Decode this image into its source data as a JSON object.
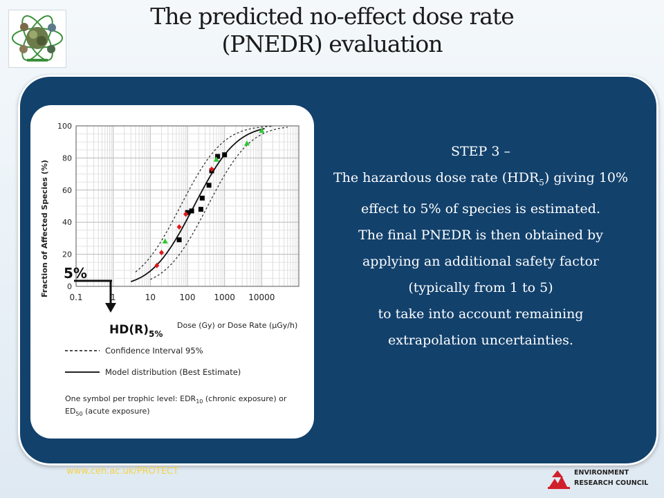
{
  "slide": {
    "title_line1": "The predicted no-effect dose rate",
    "title_line2": "(PNEDR) evaluation",
    "logo_icon": "protect-atom-logo-icon",
    "step": {
      "heading": "STEP 3 –",
      "line1_pre": "The hazardous dose rate (HDR",
      "line1_sub": "5",
      "line1_post": ") giving 10%",
      "line2": "effect to 5% of species is estimated.",
      "line3": "The final PNEDR is then obtained by",
      "line4": "applying  an additional safety factor",
      "line5": "(typically from 1 to 5)",
      "line6": "to take into account remaining",
      "line7": "extrapolation uncertainties."
    },
    "footer_url": "www.ceh.ac.uk/PROTECT",
    "org_line1": "ENVIRONMENT",
    "org_line2": "RESEARCH COUNCIL",
    "colors": {
      "panel": "#12416c",
      "accent_url": "#f3d34a",
      "nerc_red": "#d0202b"
    }
  },
  "figure": {
    "ylabel": "Fraction of Affected Species (%)",
    "xlabel": "Dose (Gy) or Dose Rate (µGy/h)",
    "hd_label": "HD(R)",
    "hd_sub": "5%",
    "five_pct": "5%",
    "legend_ci": "Confidence Interval 95%",
    "legend_model": "Model distribution (Best Estimate)",
    "note_line1": "One symbol per trophic level: EDR",
    "note_line1_sub": "10",
    "note_line1_post": " (chronic exposure) or",
    "note_line2": "ED",
    "note_line2_sub": "50",
    "note_line2_post": " (acute exposure)"
  },
  "chart_data": {
    "type": "scatter",
    "xscale": "log",
    "xlim": [
      0.1,
      100000
    ],
    "ylim": [
      0,
      100
    ],
    "x_ticks": [
      "0.1",
      "1",
      "10",
      "100",
      "1000",
      "10000"
    ],
    "y_ticks": [
      "0",
      "20",
      "40",
      "60",
      "80",
      "100"
    ],
    "grid": true,
    "model_median": 150,
    "model_sigma_log10": 0.9,
    "ci_lower_median": 350,
    "ci_upper_median": 65,
    "series": [
      {
        "name": "black squares",
        "color": "#000000",
        "shape": "square",
        "points": [
          [
            60,
            29
          ],
          [
            100,
            46
          ],
          [
            130,
            47
          ],
          [
            230,
            48
          ],
          [
            250,
            55
          ],
          [
            380,
            63
          ],
          [
            450,
            72
          ],
          [
            650,
            81
          ],
          [
            1000,
            82
          ]
        ]
      },
      {
        "name": "red diamonds",
        "color": "#e01818",
        "shape": "diamond",
        "points": [
          [
            15,
            13
          ],
          [
            20,
            21
          ],
          [
            60,
            37
          ],
          [
            90,
            45
          ],
          [
            450,
            73
          ]
        ]
      },
      {
        "name": "green triangles",
        "color": "#2ec832",
        "shape": "triangle",
        "points": [
          [
            25,
            28
          ],
          [
            600,
            79
          ],
          [
            4000,
            89
          ],
          [
            10000,
            97
          ]
        ]
      }
    ]
  }
}
